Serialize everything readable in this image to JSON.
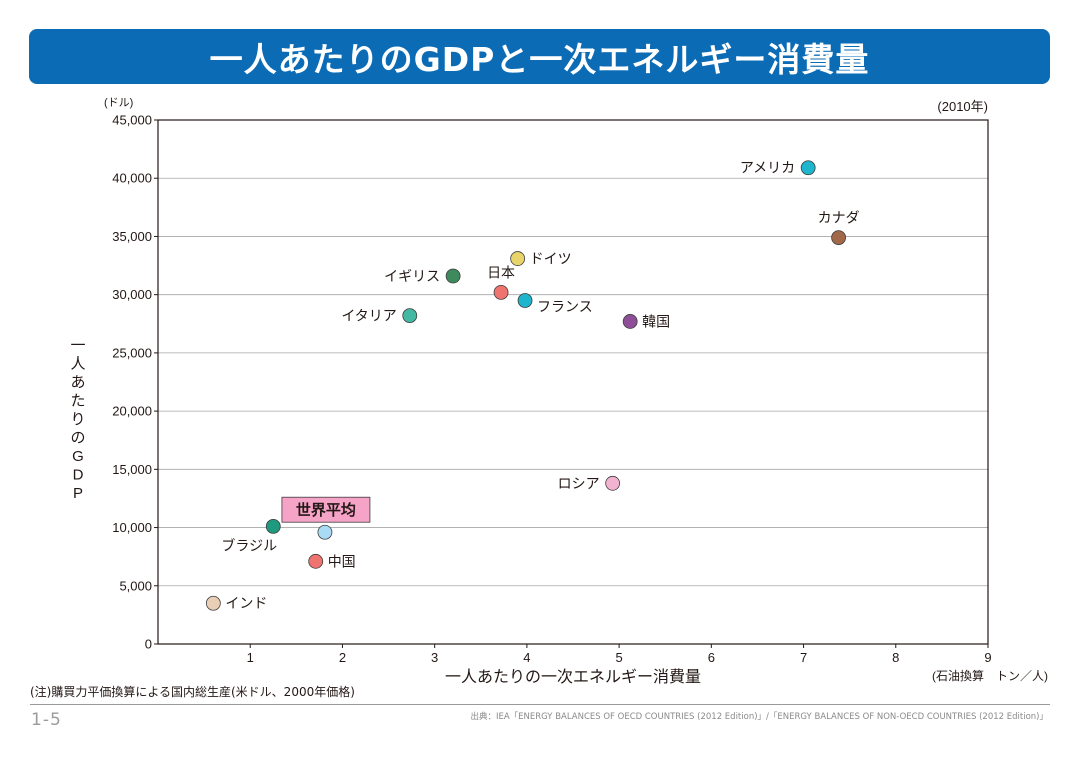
{
  "header": {
    "title": "一人あたりのGDPと一次エネルギー消費量"
  },
  "colors": {
    "title_bg": "#0b6bb5",
    "gridline": "#a6a6a6",
    "frame": "#231815",
    "world_box_fill": "#f5a3c7"
  },
  "chart_data": {
    "type": "scatter",
    "title": "一人あたりのGDPと一次エネルギー消費量",
    "year_label": "(2010年)",
    "xlabel": "一人あたりの一次エネルギー消費量",
    "x_unit": "(石油換算　トン／人)",
    "ylabel": "一人あたりのGDP",
    "y_unit": "(ドル)",
    "xlim": [
      0,
      9
    ],
    "ylim": [
      0,
      45000
    ],
    "x_ticks": [
      {
        "value": 1,
        "label": "1"
      },
      {
        "value": 2,
        "label": "2"
      },
      {
        "value": 3,
        "label": "3"
      },
      {
        "value": 4,
        "label": "4"
      },
      {
        "value": 5,
        "label": "5"
      },
      {
        "value": 6,
        "label": "6"
      },
      {
        "value": 7,
        "label": "7"
      },
      {
        "value": 8,
        "label": "8"
      },
      {
        "value": 9,
        "label": "9"
      }
    ],
    "y_ticks": [
      {
        "value": 0,
        "label": "0"
      },
      {
        "value": 5000,
        "label": "5,000"
      },
      {
        "value": 10000,
        "label": "10,000"
      },
      {
        "value": 15000,
        "label": "15,000"
      },
      {
        "value": 20000,
        "label": "20,000"
      },
      {
        "value": 25000,
        "label": "25,000"
      },
      {
        "value": 30000,
        "label": "30,000"
      },
      {
        "value": 35000,
        "label": "35,000"
      },
      {
        "value": 40000,
        "label": "40,000"
      },
      {
        "value": 45000,
        "label": "45,000"
      }
    ],
    "grid": true,
    "points": [
      {
        "id": "usa",
        "label": "アメリカ",
        "x": 7.05,
        "y": 40900,
        "color": "#1fb5cc",
        "label_pos": "left"
      },
      {
        "id": "canada",
        "label": "カナダ",
        "x": 7.38,
        "y": 34900,
        "color": "#a3674a",
        "label_pos": "above"
      },
      {
        "id": "germany",
        "label": "ドイツ",
        "x": 3.9,
        "y": 33100,
        "color": "#e8d46a",
        "label_pos": "right"
      },
      {
        "id": "uk",
        "label": "イギリス",
        "x": 3.2,
        "y": 31600,
        "color": "#3f8a5d",
        "label_pos": "left"
      },
      {
        "id": "japan",
        "label": "日本",
        "x": 3.72,
        "y": 30200,
        "color": "#ef7470",
        "label_pos": "above"
      },
      {
        "id": "france",
        "label": "フランス",
        "x": 3.98,
        "y": 29500,
        "color": "#1fb5cc",
        "label_pos": "right-below"
      },
      {
        "id": "italy",
        "label": "イタリア",
        "x": 2.73,
        "y": 28200,
        "color": "#43b8a3",
        "label_pos": "left"
      },
      {
        "id": "korea",
        "label": "韓国",
        "x": 5.12,
        "y": 27700,
        "color": "#8e4f98",
        "label_pos": "right"
      },
      {
        "id": "russia",
        "label": "ロシア",
        "x": 4.93,
        "y": 13800,
        "color": "#f2b3d0",
        "label_pos": "left"
      },
      {
        "id": "brazil",
        "label": "ブラジル",
        "x": 1.25,
        "y": 10100,
        "color": "#1f9a7e",
        "label_pos": "below-left"
      },
      {
        "id": "world",
        "label": "世界平均",
        "x": 1.81,
        "y": 9600,
        "color": "#a9dcf4",
        "label_pos": "box"
      },
      {
        "id": "china",
        "label": "中国",
        "x": 1.71,
        "y": 7100,
        "color": "#ef7470",
        "label_pos": "right"
      },
      {
        "id": "india",
        "label": "インド",
        "x": 0.6,
        "y": 3500,
        "color": "#e8cfb6",
        "label_pos": "right"
      }
    ]
  },
  "footer": {
    "note": "(注)購買力平価換算による国内総生産(米ドル、2000年価格)",
    "page_number": "1-5",
    "source": "出典：IEA「ENERGY BALANCES OF OECD COUNTRIES (2012 Edition)」/「ENERGY BALANCES OF NON-OECD COUNTRIES (2012 Edition)」"
  }
}
